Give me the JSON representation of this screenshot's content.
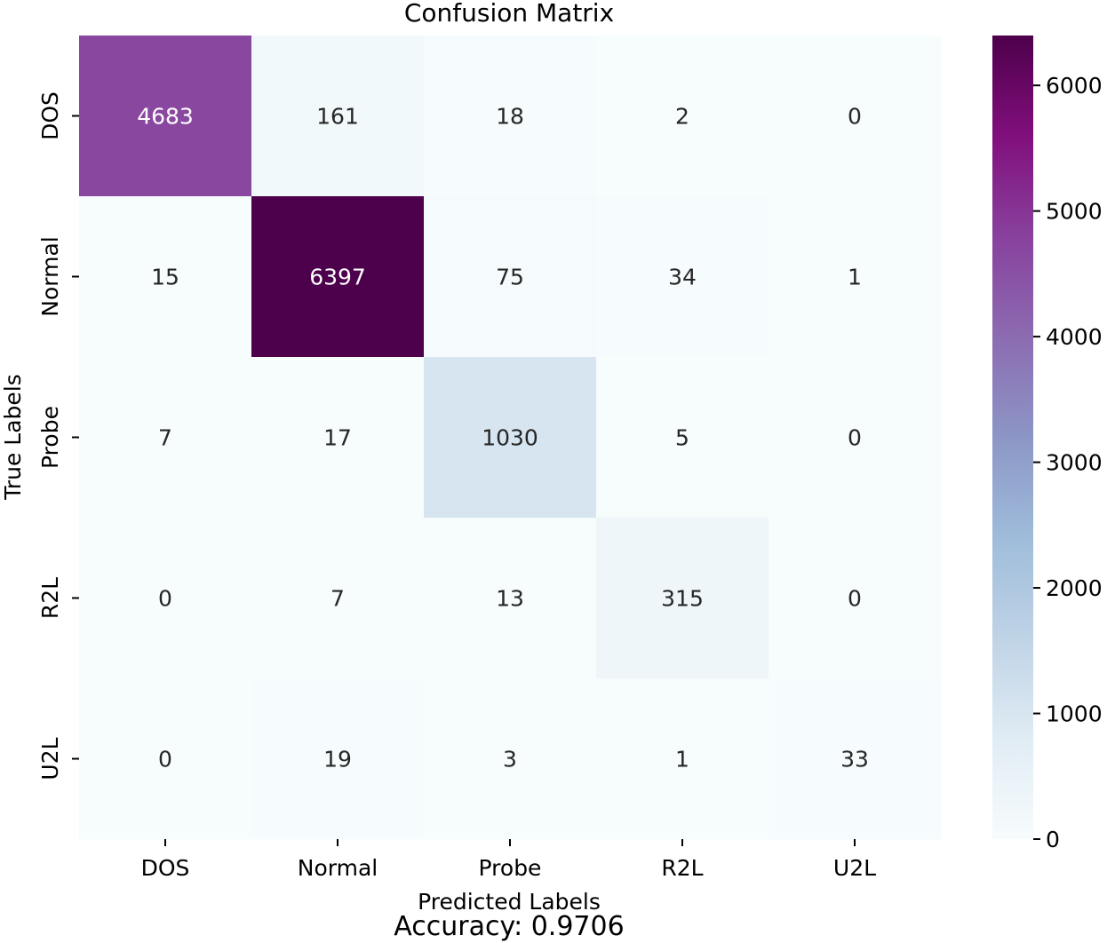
{
  "chart_data": {
    "type": "heatmap",
    "title": "Confusion Matrix",
    "xlabel": "Predicted Labels",
    "ylabel": "True Labels",
    "x_categories": [
      "DOS",
      "Normal",
      "Probe",
      "R2L",
      "U2L"
    ],
    "y_categories": [
      "DOS",
      "Normal",
      "Probe",
      "R2L",
      "U2L"
    ],
    "values": [
      [
        4683,
        161,
        18,
        2,
        0
      ],
      [
        15,
        6397,
        75,
        34,
        1
      ],
      [
        7,
        17,
        1030,
        5,
        0
      ],
      [
        0,
        7,
        13,
        315,
        0
      ],
      [
        0,
        19,
        3,
        1,
        33
      ]
    ],
    "colorbar": {
      "range": [
        0,
        6397
      ],
      "ticks": [
        0,
        1000,
        2000,
        3000,
        4000,
        5000,
        6000
      ],
      "colormap": "BuPu",
      "colors": [
        "#f7fcfd",
        "#e0ecf4",
        "#bfd3e6",
        "#9ebcda",
        "#8c96c6",
        "#8c6bb1",
        "#88419d",
        "#810f7c",
        "#4d004b"
      ]
    },
    "caption": "Accuracy: 0.9706"
  }
}
